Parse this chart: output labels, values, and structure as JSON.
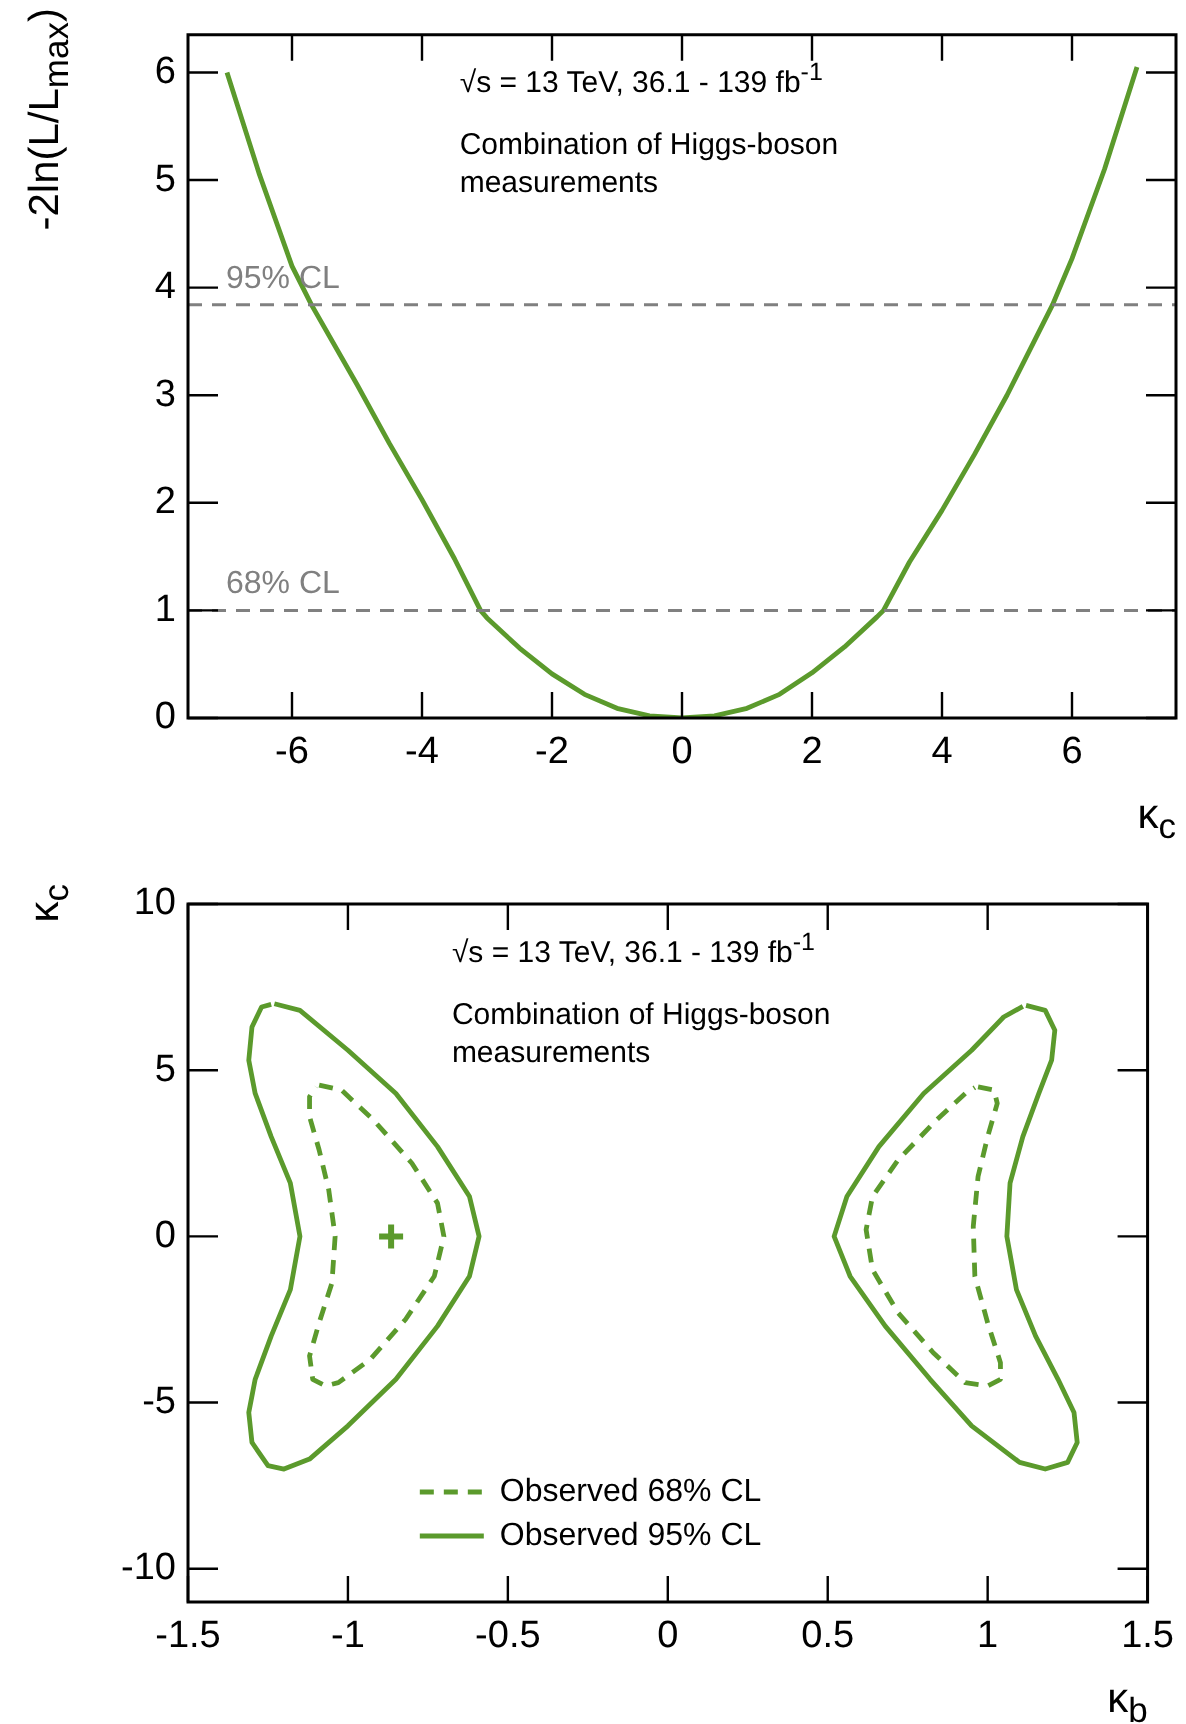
{
  "chart_data": [
    {
      "type": "line",
      "xlabel": "κ$_{c}$",
      "ylabel": "-2ln(L/L$_{max}$)",
      "annotations": [
        "√s = 13 TeV, 36.1 - 139 fb$^{-1}$",
        "Combination of Higgs-boson\nmeasurements"
      ],
      "series": [
        {
          "color": "#5b9a2c",
          "x": [
            -7,
            -6.5,
            -6,
            -5.7,
            -5,
            -4.5,
            -4,
            -3.5,
            -3.1,
            -3,
            -2.5,
            -2,
            -1.5,
            -1,
            -0.5,
            0,
            0.5,
            1,
            1.5,
            2,
            2.5,
            3,
            3.1,
            3.5,
            4,
            4.5,
            5,
            5.7,
            6,
            6.5,
            7
          ],
          "values": [
            6.0,
            5.05,
            4.2,
            3.84,
            3.1,
            2.55,
            2.03,
            1.48,
            1.0,
            0.93,
            0.65,
            0.41,
            0.22,
            0.09,
            0.02,
            0,
            0.02,
            0.09,
            0.22,
            0.42,
            0.66,
            0.94,
            1.0,
            1.45,
            1.93,
            2.45,
            3.0,
            3.84,
            4.27,
            5.1,
            6.05
          ]
        }
      ],
      "xlim": [
        -7.6,
        7.6
      ],
      "xticks": [
        -6,
        -4,
        -2,
        0,
        2,
        4,
        6
      ],
      "ylim": [
        0,
        6.35
      ],
      "yticks": [
        0,
        1,
        2,
        3,
        4,
        5,
        6
      ],
      "ref_lines": [
        {
          "axis": "y",
          "value": 3.84,
          "label": "95% CL",
          "color": "#808080",
          "line_style": "dashed"
        },
        {
          "axis": "y",
          "value": 1,
          "label": "68% CL",
          "color": "#808080",
          "line_style": "dashed"
        }
      ],
      "grid": false,
      "legend": false
    },
    {
      "type": "line",
      "xlabel": "κ$_{b}$",
      "ylabel": "κ$_{c}$",
      "annotations": [
        "√s = 13 TeV, 36.1 - 139 fb$^{-1}$",
        "Combination of Higgs-boson\nmeasurements"
      ],
      "series": [
        {
          "name": "Observed 68% CL",
          "color": "#5b9a2c",
          "line_style": "dashed",
          "x": [
            -1.09,
            -1.02,
            -0.92,
            -0.8,
            -0.72,
            -0.7,
            -0.73,
            -0.82,
            -0.93,
            -1.03,
            -1.07,
            -1.11,
            -1.12,
            -1.09,
            -1.05,
            -1.04,
            -1.06,
            -1.09,
            -1.12,
            -1.12,
            -1.1
          ],
          "values": [
            4.55,
            4.4,
            3.5,
            2.2,
            1.0,
            0,
            -1.2,
            -2.5,
            -3.7,
            -4.4,
            -4.5,
            -4.3,
            -3.6,
            -2.6,
            -1.4,
            0,
            1.4,
            2.6,
            3.6,
            4.2,
            4.5
          ]
        },
        {
          "name": "Observed 95% CL",
          "color": "#5b9a2c",
          "line_style": "solid",
          "x": [
            -1.23,
            -1.15,
            -1.0,
            -0.85,
            -0.72,
            -0.62,
            -0.59,
            -0.62,
            -0.72,
            -0.85,
            -1.0,
            -1.12,
            -1.2,
            -1.25,
            -1.3,
            -1.31,
            -1.29,
            -1.24,
            -1.18,
            -1.15,
            -1.18,
            -1.24,
            -1.29,
            -1.31,
            -1.3,
            -1.27,
            -1.24
          ],
          "values": [
            7.0,
            6.8,
            5.6,
            4.3,
            2.7,
            1.2,
            0,
            -1.2,
            -2.7,
            -4.3,
            -5.7,
            -6.7,
            -7.0,
            -6.9,
            -6.2,
            -5.3,
            -4.3,
            -3.0,
            -1.6,
            0,
            1.6,
            3.0,
            4.3,
            5.3,
            6.3,
            6.9,
            6.98
          ]
        },
        {
          "color": "#5b9a2c",
          "line_style": "dashed",
          "x": [
            0.97,
            1.02,
            1.03,
            1.0,
            0.97,
            0.955,
            0.96,
            1.0,
            1.04,
            1.04,
            1.0,
            0.93,
            0.83,
            0.72,
            0.64,
            0.62,
            0.64,
            0.72,
            0.84,
            0.93,
            0.96
          ],
          "values": [
            4.5,
            4.4,
            4.0,
            3.0,
            1.8,
            0.3,
            -1.2,
            -2.6,
            -3.8,
            -4.3,
            -4.5,
            -4.4,
            -3.5,
            -2.3,
            -1.0,
            0.2,
            1.2,
            2.3,
            3.5,
            4.3,
            4.48
          ]
        },
        {
          "color": "#5b9a2c",
          "line_style": "solid",
          "x": [
            1.12,
            1.18,
            1.21,
            1.2,
            1.16,
            1.11,
            1.07,
            1.06,
            1.09,
            1.15,
            1.22,
            1.27,
            1.28,
            1.25,
            1.18,
            1.1,
            0.95,
            0.82,
            0.68,
            0.57,
            0.52,
            0.56,
            0.66,
            0.8,
            0.95,
            1.05,
            1.11
          ],
          "values": [
            6.95,
            6.8,
            6.2,
            5.3,
            4.3,
            3.0,
            1.6,
            0,
            -1.6,
            -3.0,
            -4.3,
            -5.3,
            -6.2,
            -6.8,
            -7.0,
            -6.8,
            -5.7,
            -4.3,
            -2.7,
            -1.2,
            0,
            1.2,
            2.7,
            4.3,
            5.6,
            6.6,
            6.92
          ]
        },
        {
          "type": "scatter",
          "marker": "cross",
          "color": "#5b9a2c",
          "x": [
            -0.865
          ],
          "values": [
            0
          ]
        }
      ],
      "xlim": [
        -1.5,
        1.5
      ],
      "xticks": [
        -1.5,
        -1,
        -0.5,
        0,
        0.5,
        1,
        1.5
      ],
      "ylim": [
        -11,
        10
      ],
      "yticks": [
        -10,
        -5,
        0,
        5,
        10
      ],
      "grid": false,
      "legend": "bottom"
    }
  ]
}
